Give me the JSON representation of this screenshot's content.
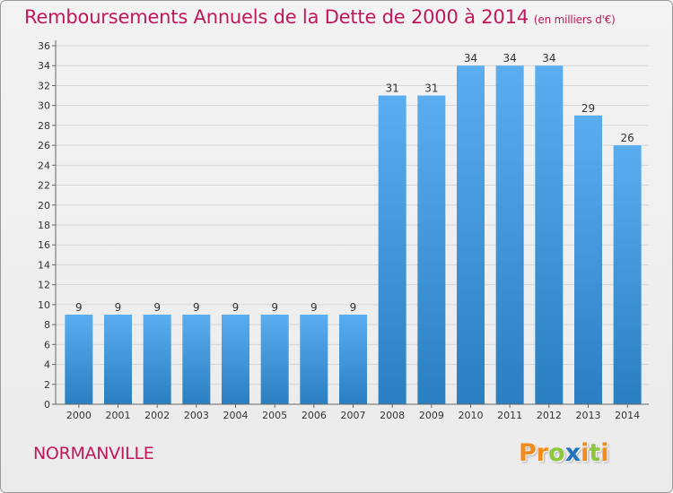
{
  "header": {
    "title": "Remboursements Annuels de la Dette de 2000 à 2014",
    "unit": "(en milliers d'€)"
  },
  "footer": {
    "city": "NORMANVILLE",
    "logo": "Proxiti"
  },
  "colors": {
    "title": "#c2185b",
    "bar_top": "#5aaef0",
    "bar_bottom": "#2a7fc0",
    "logo_letters": [
      "#f28c1e",
      "#f28c1e",
      "#8dc63f",
      "#1e73be",
      "#f28c1e",
      "#8dc63f",
      "#f28c1e"
    ]
  },
  "chart_data": {
    "type": "bar",
    "title": "Remboursements Annuels de la Dette de 2000 à 2014",
    "subtitle": "(en milliers d'€)",
    "xlabel": "",
    "ylabel": "",
    "categories": [
      "2000",
      "2001",
      "2002",
      "2003",
      "2004",
      "2005",
      "2006",
      "2007",
      "2008",
      "2009",
      "2010",
      "2011",
      "2012",
      "2013",
      "2014"
    ],
    "values": [
      9,
      9,
      9,
      9,
      9,
      9,
      9,
      9,
      31,
      31,
      34,
      34,
      34,
      29,
      26
    ],
    "ylim": [
      0,
      36
    ],
    "yticks": [
      0,
      2,
      4,
      6,
      8,
      10,
      12,
      14,
      16,
      18,
      20,
      22,
      24,
      26,
      28,
      30,
      32,
      34,
      36
    ],
    "grid": true,
    "legend": "none"
  }
}
